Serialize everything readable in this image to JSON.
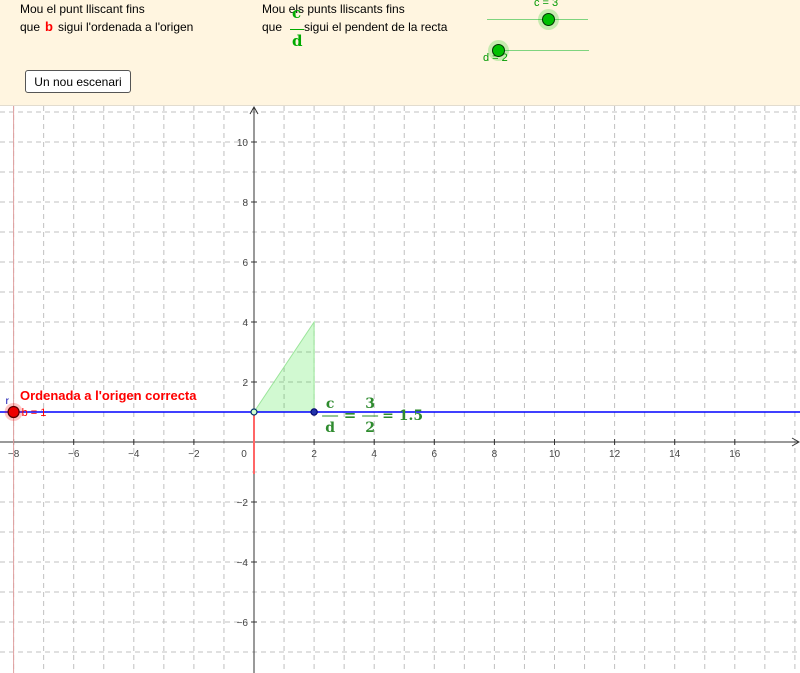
{
  "instructions": {
    "b_line1": "Mou el punt lliscant  fins",
    "b_line2_pre": "que",
    "b_var": "b",
    "b_line2_post": "sigui l'ordenada a l'origen",
    "cd_line1": "Mou els punts lliscants  fins",
    "cd_line2_pre": "que",
    "c_var": "c",
    "d_var": "d",
    "cd_line2_post": "sigui el pendent de la recta"
  },
  "new_scenario_button": "Un nou escenari",
  "sliders": {
    "c": {
      "label": "c = 3",
      "value": 3,
      "min": 0,
      "max": 6
    },
    "d": {
      "label": "d = 2",
      "value": 2,
      "min": 1,
      "max": 8
    },
    "b": {
      "label": "b = 1",
      "value": 1,
      "min": 1,
      "max": 10
    }
  },
  "graph": {
    "x_ticks": [
      "−8",
      "−6",
      "−4",
      "−2",
      "0",
      "2",
      "4",
      "6",
      "8",
      "10",
      "12",
      "14",
      "16"
    ],
    "y_ticks": [
      "10",
      "8",
      "6",
      "4",
      "2",
      "−2",
      "−4",
      "−6"
    ],
    "x_range": [
      -8.5,
      18
    ],
    "y_range": [
      -7.4,
      11
    ],
    "line": {
      "slope": 0,
      "intercept": 1
    },
    "slope_triangle": {
      "x0": 0,
      "y0": 1,
      "run": 2,
      "rise": 3
    },
    "feedback": "Ordenada a l'origen correcta",
    "formula": {
      "num_var": "c",
      "den_var": "d",
      "equals": "=",
      "num_val": "3",
      "den_val": "2",
      "result": "= 1.5"
    },
    "point_r_label": "r",
    "colors": {
      "line": "#0000ff",
      "triangle": "#00cc00",
      "slider_b": "#ff0000",
      "formula": "#2e8b2e",
      "grid": "#c0c0c0"
    }
  }
}
